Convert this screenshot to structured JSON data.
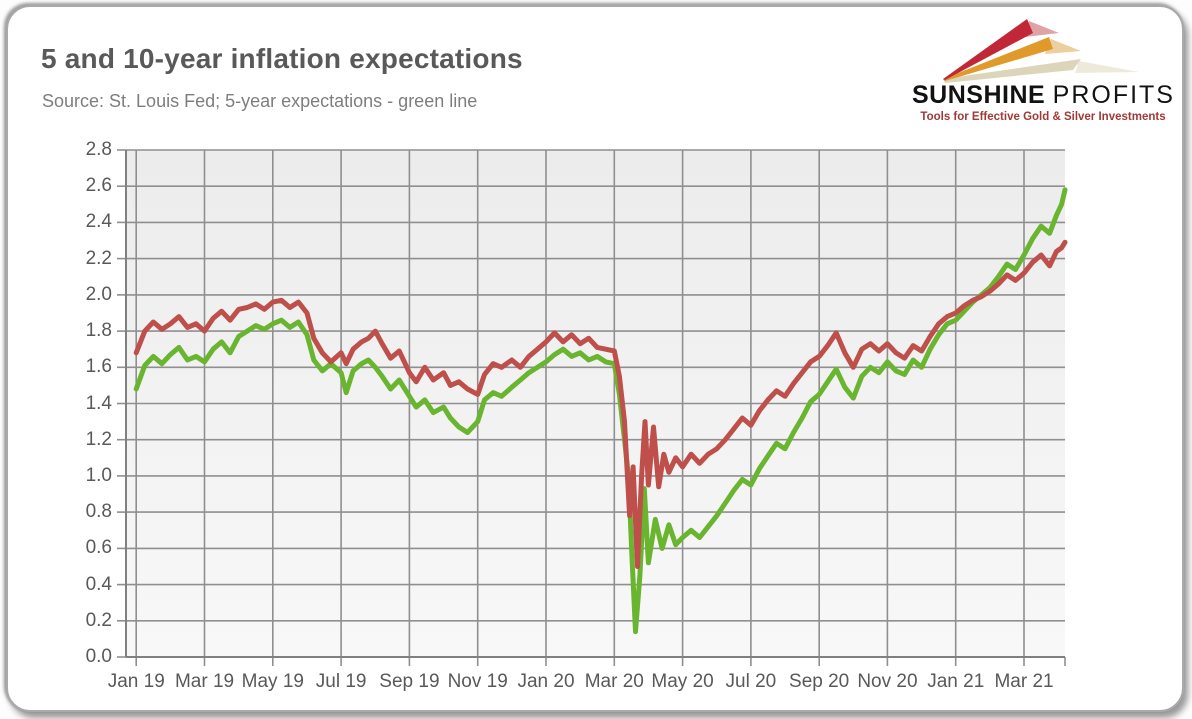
{
  "header": {
    "title": "5 and 10-year inflation expectations",
    "subtitle": "Source: St. Louis Fed; 5-year expectations - green line"
  },
  "logo": {
    "name_bold": "SUNSHINE",
    "name_light": "PROFITS",
    "tagline": "Tools for Effective Gold & Silver Investments",
    "colors": {
      "ray_red": "#c22737",
      "ray_red_echo": "#dfa3a3",
      "ray_orange": "#e0992b",
      "ray_orange_echo": "#eccf9e",
      "ray_cream": "#ddd5ba",
      "ray_cream_echo": "#eeeadb",
      "text": "#121212",
      "tagline": "#a03a36"
    }
  },
  "chart_data": {
    "type": "line",
    "title": "5 and 10-year inflation expectations",
    "xlabel": "",
    "ylabel": "",
    "x_unit": "months since Jan 2019",
    "x_range": [
      -0.3,
      27.2
    ],
    "ylim": [
      0,
      2.8
    ],
    "grid": true,
    "legend": "none (series identified in subtitle: 5-year = green, 10-year = red)",
    "plot_bg_top": "#ececec",
    "plot_bg_bottom": "#f8f8f8",
    "grid_color": "#8f8f8f",
    "axis_color": "#808080",
    "tick_label_color": "#595959",
    "y_tick_values": [
      0.0,
      0.2,
      0.4,
      0.6,
      0.8,
      1.0,
      1.2,
      1.4,
      1.6,
      1.8,
      2.0,
      2.2,
      2.4,
      2.6,
      2.8
    ],
    "y_tick_labels": [
      "0.0",
      "0.2",
      "0.4",
      "0.6",
      "0.8",
      "1.0",
      "1.2",
      "1.4",
      "1.6",
      "1.8",
      "2.0",
      "2.2",
      "2.4",
      "2.6",
      "2.8"
    ],
    "x_tick_months": [
      0,
      2,
      4,
      6,
      8,
      10,
      12,
      14,
      16,
      18,
      20,
      22,
      24,
      26
    ],
    "x_tick_labels": [
      "Jan 19",
      "Mar 19",
      "May 19",
      "Jul 19",
      "Sep 19",
      "Nov 19",
      "Jan 20",
      "Mar 20",
      "May 20",
      "Jul 20",
      "Sep 20",
      "Nov 20",
      "Jan 21",
      "Mar 21"
    ],
    "series": [
      {
        "name": "5-year inflation expectations (green line)",
        "color": "#6ab52f",
        "points": [
          [
            0.0,
            1.48
          ],
          [
            0.25,
            1.61
          ],
          [
            0.5,
            1.66
          ],
          [
            0.75,
            1.62
          ],
          [
            1.0,
            1.67
          ],
          [
            1.25,
            1.71
          ],
          [
            1.5,
            1.64
          ],
          [
            1.75,
            1.66
          ],
          [
            2.0,
            1.63
          ],
          [
            2.25,
            1.7
          ],
          [
            2.5,
            1.74
          ],
          [
            2.75,
            1.68
          ],
          [
            3.0,
            1.77
          ],
          [
            3.25,
            1.8
          ],
          [
            3.5,
            1.83
          ],
          [
            3.75,
            1.81
          ],
          [
            4.0,
            1.84
          ],
          [
            4.25,
            1.86
          ],
          [
            4.5,
            1.82
          ],
          [
            4.75,
            1.85
          ],
          [
            5.0,
            1.78
          ],
          [
            5.2,
            1.64
          ],
          [
            5.45,
            1.58
          ],
          [
            5.7,
            1.62
          ],
          [
            6.0,
            1.57
          ],
          [
            6.15,
            1.46
          ],
          [
            6.35,
            1.58
          ],
          [
            6.6,
            1.62
          ],
          [
            6.8,
            1.64
          ],
          [
            7.0,
            1.6
          ],
          [
            7.2,
            1.55
          ],
          [
            7.45,
            1.48
          ],
          [
            7.7,
            1.53
          ],
          [
            8.0,
            1.44
          ],
          [
            8.2,
            1.38
          ],
          [
            8.45,
            1.42
          ],
          [
            8.7,
            1.35
          ],
          [
            9.0,
            1.38
          ],
          [
            9.2,
            1.32
          ],
          [
            9.45,
            1.27
          ],
          [
            9.7,
            1.24
          ],
          [
            10.0,
            1.3
          ],
          [
            10.2,
            1.42
          ],
          [
            10.45,
            1.46
          ],
          [
            10.7,
            1.44
          ],
          [
            11.0,
            1.49
          ],
          [
            11.25,
            1.53
          ],
          [
            11.5,
            1.57
          ],
          [
            11.75,
            1.6
          ],
          [
            12.0,
            1.63
          ],
          [
            12.25,
            1.67
          ],
          [
            12.5,
            1.7
          ],
          [
            12.75,
            1.66
          ],
          [
            13.0,
            1.68
          ],
          [
            13.25,
            1.64
          ],
          [
            13.5,
            1.66
          ],
          [
            13.75,
            1.63
          ],
          [
            14.0,
            1.62
          ],
          [
            14.15,
            1.45
          ],
          [
            14.3,
            1.2
          ],
          [
            14.42,
            0.99
          ],
          [
            14.52,
            0.55
          ],
          [
            14.62,
            0.14
          ],
          [
            14.75,
            0.45
          ],
          [
            14.88,
            0.93
          ],
          [
            15.0,
            0.52
          ],
          [
            15.2,
            0.76
          ],
          [
            15.4,
            0.6
          ],
          [
            15.6,
            0.73
          ],
          [
            15.8,
            0.62
          ],
          [
            16.0,
            0.66
          ],
          [
            16.25,
            0.7
          ],
          [
            16.5,
            0.66
          ],
          [
            16.75,
            0.72
          ],
          [
            17.0,
            0.78
          ],
          [
            17.25,
            0.85
          ],
          [
            17.5,
            0.92
          ],
          [
            17.75,
            0.98
          ],
          [
            18.0,
            0.95
          ],
          [
            18.25,
            1.04
          ],
          [
            18.5,
            1.11
          ],
          [
            18.75,
            1.18
          ],
          [
            19.0,
            1.15
          ],
          [
            19.25,
            1.24
          ],
          [
            19.5,
            1.32
          ],
          [
            19.75,
            1.41
          ],
          [
            20.0,
            1.45
          ],
          [
            20.25,
            1.52
          ],
          [
            20.5,
            1.59
          ],
          [
            20.75,
            1.49
          ],
          [
            21.0,
            1.43
          ],
          [
            21.25,
            1.55
          ],
          [
            21.5,
            1.6
          ],
          [
            21.75,
            1.57
          ],
          [
            22.0,
            1.63
          ],
          [
            22.25,
            1.58
          ],
          [
            22.5,
            1.56
          ],
          [
            22.75,
            1.64
          ],
          [
            23.0,
            1.6
          ],
          [
            23.25,
            1.7
          ],
          [
            23.5,
            1.78
          ],
          [
            23.75,
            1.84
          ],
          [
            24.0,
            1.86
          ],
          [
            24.25,
            1.91
          ],
          [
            24.5,
            1.96
          ],
          [
            24.75,
            2.0
          ],
          [
            25.0,
            2.04
          ],
          [
            25.25,
            2.1
          ],
          [
            25.5,
            2.17
          ],
          [
            25.75,
            2.14
          ],
          [
            26.0,
            2.22
          ],
          [
            26.25,
            2.31
          ],
          [
            26.5,
            2.38
          ],
          [
            26.75,
            2.34
          ],
          [
            26.95,
            2.44
          ],
          [
            27.1,
            2.5
          ],
          [
            27.2,
            2.58
          ]
        ]
      },
      {
        "name": "10-year inflation expectations (red line)",
        "color": "#bf4f4a",
        "points": [
          [
            0.0,
            1.68
          ],
          [
            0.25,
            1.8
          ],
          [
            0.5,
            1.85
          ],
          [
            0.75,
            1.81
          ],
          [
            1.0,
            1.84
          ],
          [
            1.25,
            1.88
          ],
          [
            1.5,
            1.82
          ],
          [
            1.75,
            1.84
          ],
          [
            2.0,
            1.8
          ],
          [
            2.25,
            1.87
          ],
          [
            2.5,
            1.91
          ],
          [
            2.75,
            1.86
          ],
          [
            3.0,
            1.92
          ],
          [
            3.25,
            1.93
          ],
          [
            3.5,
            1.95
          ],
          [
            3.75,
            1.92
          ],
          [
            4.0,
            1.96
          ],
          [
            4.25,
            1.97
          ],
          [
            4.5,
            1.93
          ],
          [
            4.75,
            1.96
          ],
          [
            5.0,
            1.9
          ],
          [
            5.2,
            1.76
          ],
          [
            5.45,
            1.68
          ],
          [
            5.7,
            1.63
          ],
          [
            6.0,
            1.68
          ],
          [
            6.15,
            1.62
          ],
          [
            6.35,
            1.7
          ],
          [
            6.6,
            1.74
          ],
          [
            6.8,
            1.76
          ],
          [
            7.0,
            1.8
          ],
          [
            7.2,
            1.73
          ],
          [
            7.45,
            1.65
          ],
          [
            7.7,
            1.69
          ],
          [
            8.0,
            1.57
          ],
          [
            8.2,
            1.52
          ],
          [
            8.45,
            1.6
          ],
          [
            8.7,
            1.53
          ],
          [
            9.0,
            1.57
          ],
          [
            9.2,
            1.5
          ],
          [
            9.45,
            1.52
          ],
          [
            9.7,
            1.48
          ],
          [
            10.0,
            1.45
          ],
          [
            10.2,
            1.56
          ],
          [
            10.45,
            1.62
          ],
          [
            10.7,
            1.6
          ],
          [
            11.0,
            1.64
          ],
          [
            11.25,
            1.6
          ],
          [
            11.5,
            1.66
          ],
          [
            11.75,
            1.7
          ],
          [
            12.0,
            1.74
          ],
          [
            12.25,
            1.79
          ],
          [
            12.5,
            1.74
          ],
          [
            12.75,
            1.78
          ],
          [
            13.0,
            1.73
          ],
          [
            13.25,
            1.76
          ],
          [
            13.5,
            1.71
          ],
          [
            13.75,
            1.7
          ],
          [
            14.0,
            1.69
          ],
          [
            14.15,
            1.55
          ],
          [
            14.3,
            1.3
          ],
          [
            14.45,
            0.78
          ],
          [
            14.55,
            1.05
          ],
          [
            14.68,
            0.5
          ],
          [
            14.8,
            1.0
          ],
          [
            14.9,
            1.3
          ],
          [
            15.0,
            0.95
          ],
          [
            15.15,
            1.27
          ],
          [
            15.3,
            0.94
          ],
          [
            15.45,
            1.12
          ],
          [
            15.6,
            1.02
          ],
          [
            15.8,
            1.1
          ],
          [
            16.0,
            1.05
          ],
          [
            16.25,
            1.12
          ],
          [
            16.5,
            1.07
          ],
          [
            16.75,
            1.12
          ],
          [
            17.0,
            1.15
          ],
          [
            17.25,
            1.2
          ],
          [
            17.5,
            1.26
          ],
          [
            17.75,
            1.32
          ],
          [
            18.0,
            1.28
          ],
          [
            18.25,
            1.36
          ],
          [
            18.5,
            1.42
          ],
          [
            18.75,
            1.47
          ],
          [
            19.0,
            1.44
          ],
          [
            19.25,
            1.51
          ],
          [
            19.5,
            1.57
          ],
          [
            19.75,
            1.63
          ],
          [
            20.0,
            1.66
          ],
          [
            20.25,
            1.72
          ],
          [
            20.5,
            1.79
          ],
          [
            20.75,
            1.68
          ],
          [
            21.0,
            1.6
          ],
          [
            21.25,
            1.7
          ],
          [
            21.5,
            1.73
          ],
          [
            21.75,
            1.69
          ],
          [
            22.0,
            1.73
          ],
          [
            22.25,
            1.68
          ],
          [
            22.5,
            1.65
          ],
          [
            22.75,
            1.72
          ],
          [
            23.0,
            1.69
          ],
          [
            23.25,
            1.77
          ],
          [
            23.5,
            1.84
          ],
          [
            23.75,
            1.88
          ],
          [
            24.0,
            1.9
          ],
          [
            24.25,
            1.94
          ],
          [
            24.5,
            1.97
          ],
          [
            24.75,
            1.99
          ],
          [
            25.0,
            2.02
          ],
          [
            25.25,
            2.06
          ],
          [
            25.5,
            2.11
          ],
          [
            25.75,
            2.08
          ],
          [
            26.0,
            2.12
          ],
          [
            26.25,
            2.18
          ],
          [
            26.5,
            2.22
          ],
          [
            26.75,
            2.16
          ],
          [
            26.95,
            2.24
          ],
          [
            27.1,
            2.26
          ],
          [
            27.2,
            2.29
          ]
        ]
      }
    ]
  }
}
